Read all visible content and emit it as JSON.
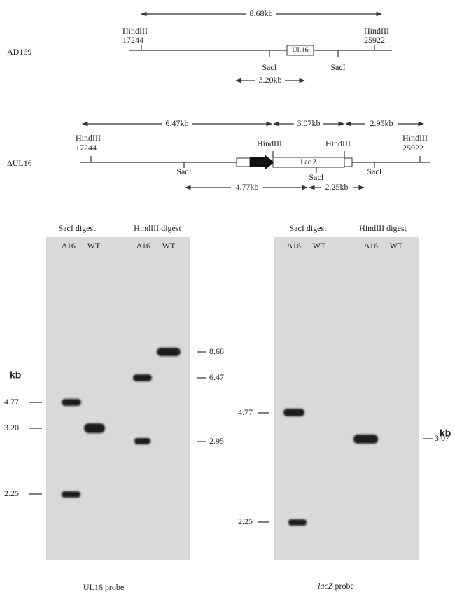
{
  "map": {
    "ad169": {
      "label": "AD169",
      "span": "8.68kb",
      "left_site": "HindIII",
      "left_pos": "17244",
      "right_site": "HindIII",
      "right_pos": "25922",
      "gene": "UL16",
      "sac_left": "SacI",
      "sac_right": "SacI",
      "sac_span": "3.20kb"
    },
    "dul16": {
      "label": "ΔUL16",
      "span_left": "6.47kb",
      "span_mid": "3.07kb",
      "span_right": "2.95kb",
      "left_site": "HindIII",
      "left_pos": "17244",
      "right_site": "HindIII",
      "right_pos": "25922",
      "hind_mid_left": "HindIII",
      "hind_mid_right": "HindIII",
      "insert": "Lac Z",
      "sac_left": "SacI",
      "sac_mid": "SacI",
      "sac_right": "SacI",
      "sac_span_left": "4.77kb",
      "sac_span_right": "2.25kb"
    }
  },
  "blots": [
    {
      "digests": [
        "SacI digest",
        "HindIII digest"
      ],
      "lanes": [
        "Δ16",
        "WT",
        "Δ16",
        "WT"
      ],
      "markers_left": [
        "4.77",
        "3.20",
        "2.25"
      ],
      "markers_right": [
        "8.68",
        "6.47",
        "2.95"
      ],
      "unit": "kb",
      "probe": "UL16",
      "probe_word": "probe"
    },
    {
      "digests": [
        "SacI digest",
        "HindIII digest"
      ],
      "lanes": [
        "Δ16",
        "WT",
        "Δ16",
        "WT"
      ],
      "markers_left": [
        "4.77",
        "2.25"
      ],
      "markers_right": [
        "3.07"
      ],
      "unit": "kb",
      "probe": "lacZ",
      "probe_word": "probe"
    }
  ]
}
